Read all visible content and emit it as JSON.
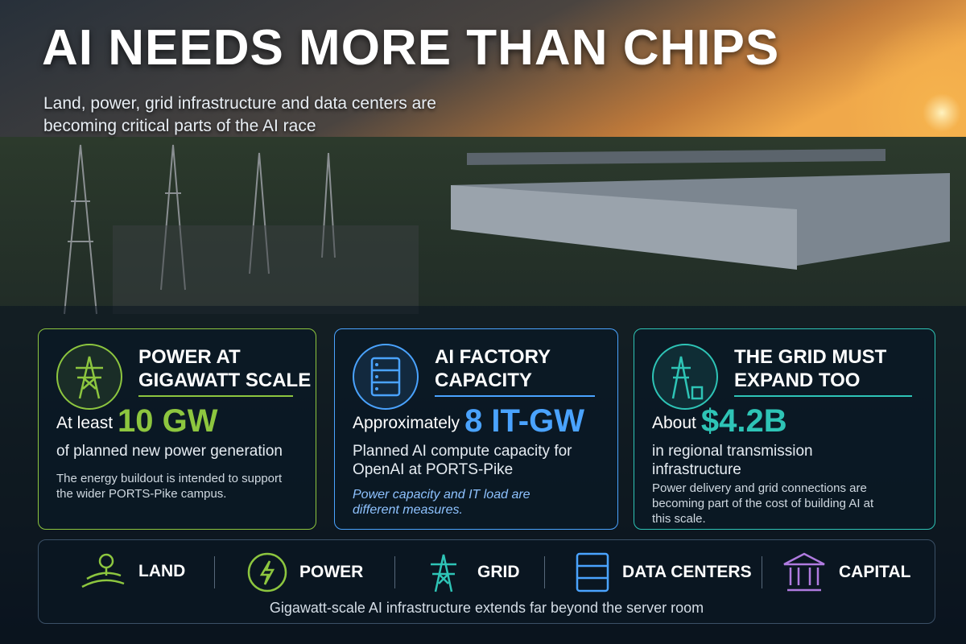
{
  "header": {
    "title": "AI NEEDS MORE THAN CHIPS",
    "subtitle": "Land, power, grid infrastructure and data centers are becoming critical parts of the AI race"
  },
  "cards": [
    {
      "heading": "POWER AT GIGAWATT SCALE",
      "lead": "At least",
      "figure": "10 GW",
      "description": "of planned new power generation",
      "note": "The energy buildout is intended to support the wider PORTS-Pike campus."
    },
    {
      "heading": "AI FACTORY CAPACITY",
      "lead": "Approximately",
      "figure": "8 IT-GW",
      "description": "Planned AI compute capacity for OpenAI at PORTS-Pike",
      "note": "Power capacity and IT load are different measures."
    },
    {
      "heading": "THE GRID MUST EXPAND TOO",
      "lead": "About",
      "figure": "$4.2B",
      "description": "in regional transmission infrastructure",
      "note": "Power delivery and grid connections are becoming part of the cost of building AI at this scale."
    }
  ],
  "pillars": {
    "items": [
      "LAND",
      "POWER",
      "GRID",
      "DATA CENTERS",
      "CAPITAL"
    ],
    "caption": "Gigawatt-scale AI infrastructure extends far beyond the server room"
  }
}
